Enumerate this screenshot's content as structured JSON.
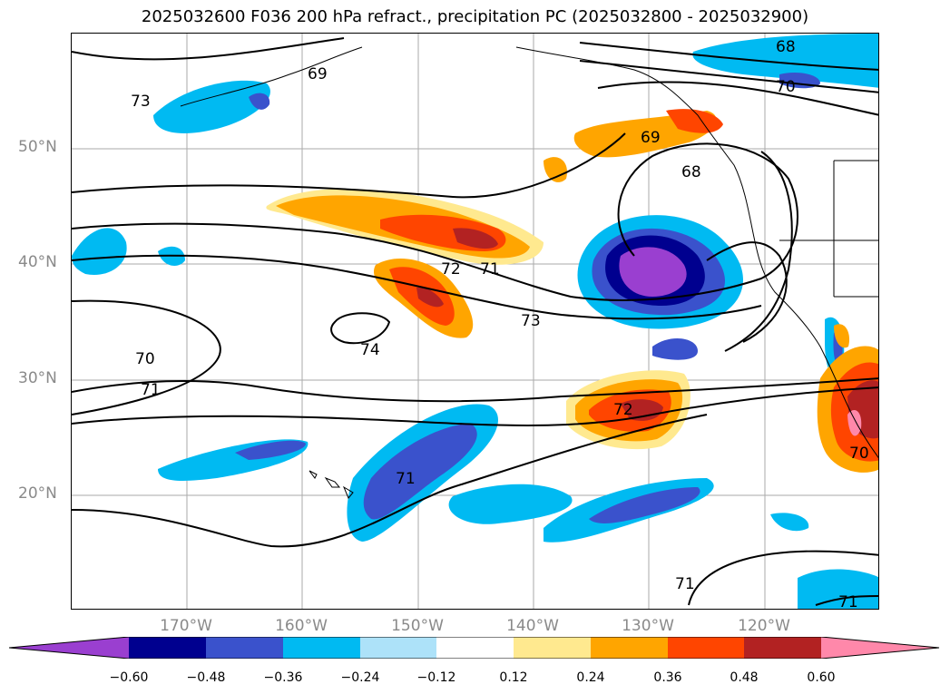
{
  "title": "2025032600 F036 200 hPa refract., precipitation PC (2025032800 - 2025032900)",
  "lat_labels": [
    "50°N",
    "40°N",
    "30°N",
    "20°N"
  ],
  "lon_labels": [
    "170°W",
    "160°W",
    "150°W",
    "140°W",
    "130°W",
    "120°W"
  ],
  "contour_labels": [
    "68",
    "70",
    "69",
    "68",
    "73",
    "69",
    "72",
    "71",
    "73",
    "74",
    "70",
    "71",
    "72",
    "71",
    "71",
    "71",
    "70"
  ],
  "colorbar": {
    "ticks": [
      "−0.60",
      "−0.48",
      "−0.36",
      "−0.24",
      "−0.12",
      "0.12",
      "0.24",
      "0.36",
      "0.48",
      "0.60"
    ],
    "colors": [
      "#9a3fd0",
      "#00008f",
      "#3a52cc",
      "#00baf2",
      "#ade2f9",
      "#ffffff",
      "#ffe98f",
      "#ffa500",
      "#ff4500",
      "#b22222",
      "#ff88aa"
    ]
  }
}
